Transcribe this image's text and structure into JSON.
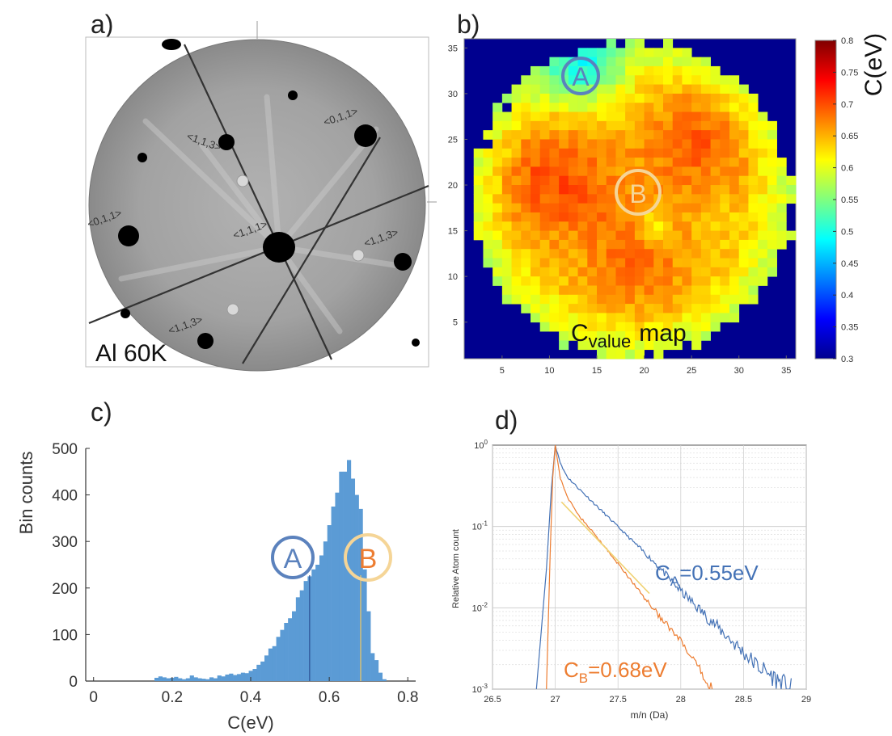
{
  "panels": {
    "a": "a)",
    "b": "b)",
    "c": "c)",
    "d": "d)"
  },
  "panel_a": {
    "caption": "Al 60K",
    "poles": [
      "<1,1,3>",
      "<0,1,1>",
      "<0,1,1>",
      "<1,1,1>",
      "<1,1,3>",
      "<1,1,3>"
    ]
  },
  "chart_data": [
    {
      "id": "b",
      "type": "heatmap",
      "title": "",
      "annotation": {
        "main": "C",
        "sub": "value",
        "rest": "map"
      },
      "markers": [
        {
          "label": "A",
          "color": "#5b82bd"
        },
        {
          "label": "B",
          "color": "#f5d597"
        }
      ],
      "xlim": [
        1,
        36
      ],
      "ylim": [
        1,
        36
      ],
      "xticks": [
        5,
        10,
        15,
        20,
        25,
        30,
        35
      ],
      "yticks": [
        5,
        10,
        15,
        20,
        25,
        30,
        35
      ],
      "colorbar": {
        "label": "C(eV)",
        "range": [
          0.3,
          0.8
        ],
        "colormap": "jet",
        "ticks": [
          "0.8",
          "0.75",
          "0.7",
          "0.65",
          "0.6",
          "0.55",
          "0.5",
          "0.45",
          "0.4",
          "0.35",
          "0.3"
        ]
      },
      "outside_value": 0.3
    },
    {
      "id": "c",
      "type": "bar",
      "xlabel": "C(eV)",
      "ylabel": "Bin counts",
      "xlim": [
        -0.02,
        0.82
      ],
      "ylim": [
        0,
        500
      ],
      "xticks": [
        "0",
        "0.2",
        "0.4",
        "0.6",
        "0.8"
      ],
      "yticks": [
        "0",
        "100",
        "200",
        "300",
        "400",
        "500"
      ],
      "bin_width": 0.01,
      "bins": [
        [
          0.16,
          7
        ],
        [
          0.17,
          10
        ],
        [
          0.18,
          8
        ],
        [
          0.19,
          6
        ],
        [
          0.2,
          7
        ],
        [
          0.21,
          9
        ],
        [
          0.22,
          6
        ],
        [
          0.23,
          4
        ],
        [
          0.24,
          6
        ],
        [
          0.25,
          12
        ],
        [
          0.26,
          8
        ],
        [
          0.27,
          6
        ],
        [
          0.28,
          5
        ],
        [
          0.29,
          4
        ],
        [
          0.3,
          8
        ],
        [
          0.31,
          6
        ],
        [
          0.32,
          12
        ],
        [
          0.33,
          10
        ],
        [
          0.34,
          14
        ],
        [
          0.35,
          16
        ],
        [
          0.36,
          13
        ],
        [
          0.37,
          15
        ],
        [
          0.38,
          18
        ],
        [
          0.39,
          17
        ],
        [
          0.4,
          22
        ],
        [
          0.41,
          26
        ],
        [
          0.42,
          35
        ],
        [
          0.43,
          42
        ],
        [
          0.44,
          55
        ],
        [
          0.45,
          70
        ],
        [
          0.46,
          75
        ],
        [
          0.47,
          95
        ],
        [
          0.48,
          110
        ],
        [
          0.49,
          125
        ],
        [
          0.5,
          135
        ],
        [
          0.51,
          150
        ],
        [
          0.52,
          180
        ],
        [
          0.53,
          195
        ],
        [
          0.54,
          215
        ],
        [
          0.55,
          225
        ],
        [
          0.56,
          240
        ],
        [
          0.57,
          250
        ],
        [
          0.58,
          270
        ],
        [
          0.59,
          300
        ],
        [
          0.6,
          335
        ],
        [
          0.61,
          375
        ],
        [
          0.62,
          405
        ],
        [
          0.63,
          450
        ],
        [
          0.64,
          450
        ],
        [
          0.65,
          475
        ],
        [
          0.66,
          435
        ],
        [
          0.67,
          400
        ],
        [
          0.68,
          370
        ],
        [
          0.69,
          240
        ],
        [
          0.7,
          150
        ],
        [
          0.71,
          60
        ],
        [
          0.72,
          45
        ],
        [
          0.73,
          18
        ],
        [
          0.74,
          4
        ]
      ],
      "bar_color": "#5b9bd5",
      "markers": [
        {
          "label": "A",
          "x": 0.55,
          "color": "#5b82bd",
          "line_color": "#2e5597"
        },
        {
          "label": "B",
          "x": 0.68,
          "color": "#ed7d31",
          "ring_color": "#f5d597",
          "line_color": "#e8c46a"
        }
      ]
    },
    {
      "id": "d",
      "type": "line",
      "xlabel": "m/n (Da)",
      "ylabel": "Relative Atom count",
      "yscale": "log",
      "xlim": [
        26.5,
        29
      ],
      "ylim": [
        0.001,
        1
      ],
      "xticks": [
        "26.5",
        "27",
        "27.5",
        "28",
        "28.5",
        "29"
      ],
      "ytick_values": [
        0.001,
        0.01,
        0.1,
        1
      ],
      "ytick_labels": {
        "base": "10",
        "exponents": [
          "-3",
          "-2",
          "-1",
          "0"
        ]
      },
      "grid": true,
      "series": [
        {
          "label_main": "C",
          "label_sub": "A",
          "label_rest": "=0.55eV",
          "color": "#4472b6",
          "rise": [
            [
              26.85,
              0.001
            ],
            [
              26.93,
              0.03
            ],
            [
              26.97,
              0.3
            ],
            [
              27.0,
              1
            ]
          ],
          "decay": [
            [
              27.0,
              1
            ],
            [
              27.05,
              0.55
            ],
            [
              27.1,
              0.4
            ],
            [
              27.2,
              0.28
            ],
            [
              27.4,
              0.14
            ],
            [
              27.6,
              0.07
            ],
            [
              27.8,
              0.035
            ],
            [
              28.0,
              0.016
            ],
            [
              28.2,
              0.008
            ],
            [
              28.4,
              0.004
            ],
            [
              28.6,
              0.002
            ],
            [
              28.8,
              0.0012
            ],
            [
              28.88,
              0.001
            ]
          ]
        },
        {
          "label_main": "C",
          "label_sub": "B",
          "label_rest": "=0.68eV",
          "color": "#ed7d31",
          "rise": [
            [
              26.93,
              0.001
            ],
            [
              26.96,
              0.05
            ],
            [
              26.98,
              0.4
            ],
            [
              27.0,
              1
            ]
          ],
          "decay": [
            [
              27.0,
              1
            ],
            [
              27.04,
              0.4
            ],
            [
              27.1,
              0.22
            ],
            [
              27.2,
              0.13
            ],
            [
              27.4,
              0.055
            ],
            [
              27.6,
              0.022
            ],
            [
              27.8,
              0.009
            ],
            [
              28.0,
              0.0038
            ],
            [
              28.1,
              0.0022
            ],
            [
              28.2,
              0.0013
            ],
            [
              28.25,
              0.001
            ]
          ]
        }
      ],
      "fit_line": {
        "color": "#f0d272",
        "from": [
          27.05,
          0.2
        ],
        "to": [
          27.75,
          0.015
        ]
      }
    }
  ]
}
